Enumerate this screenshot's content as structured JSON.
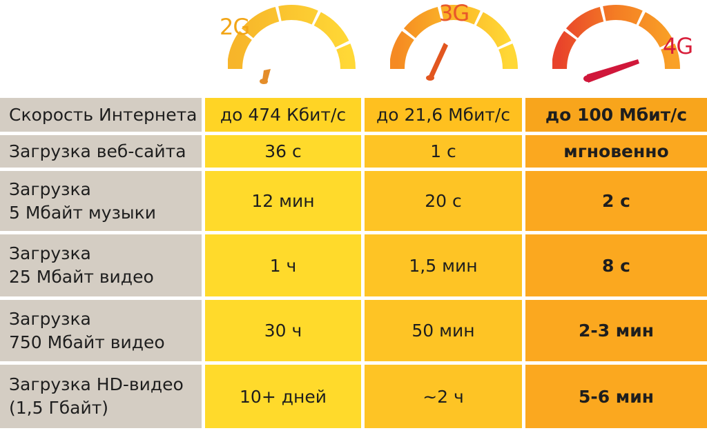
{
  "gauges": [
    {
      "label": "2G",
      "label_color": "#f2a516",
      "needle_color": "#e48d2a"
    },
    {
      "label": "3G",
      "label_color": "#e8582a",
      "needle_color": "#e2561f"
    },
    {
      "label": "4G",
      "label_color": "#d81e3a",
      "needle_color": "#d0173a"
    }
  ],
  "rows": [
    {
      "label": "Скорость Интернета",
      "v2g": "до 474 Кбит/с",
      "v3g": "до 21,6 Мбит/с",
      "v4g": "до 100 Мбит/с"
    },
    {
      "label": "Загрузка веб-сайта",
      "v2g": "36 с",
      "v3g": "1 с",
      "v4g": "мгновенно"
    },
    {
      "label1": "Загрузка",
      "label2": "5 Мбайт музыки",
      "v2g": "12 мин",
      "v3g": "20 с",
      "v4g": "2 с"
    },
    {
      "label1": "Загрузка",
      "label2": "25 Мбайт видео",
      "v2g": "1 ч",
      "v3g": "1,5 мин",
      "v4g": "8 с"
    },
    {
      "label1": "Загрузка",
      "label2": "750 Мбайт видео",
      "v2g": "30 ч",
      "v3g": "50 мин",
      "v4g": "2-3 мин"
    },
    {
      "label1": "Загрузка HD-видео",
      "label2": "(1,5 Гбайт)",
      "v2g": "10+ дней",
      "v3g": "~2 ч",
      "v4g": "5-6 мин"
    }
  ],
  "colors": {
    "label_col": "#d4cdc3",
    "col_2g": "#ffda2b",
    "col_3g": "#fec425",
    "col_4g": "#fba81f"
  }
}
